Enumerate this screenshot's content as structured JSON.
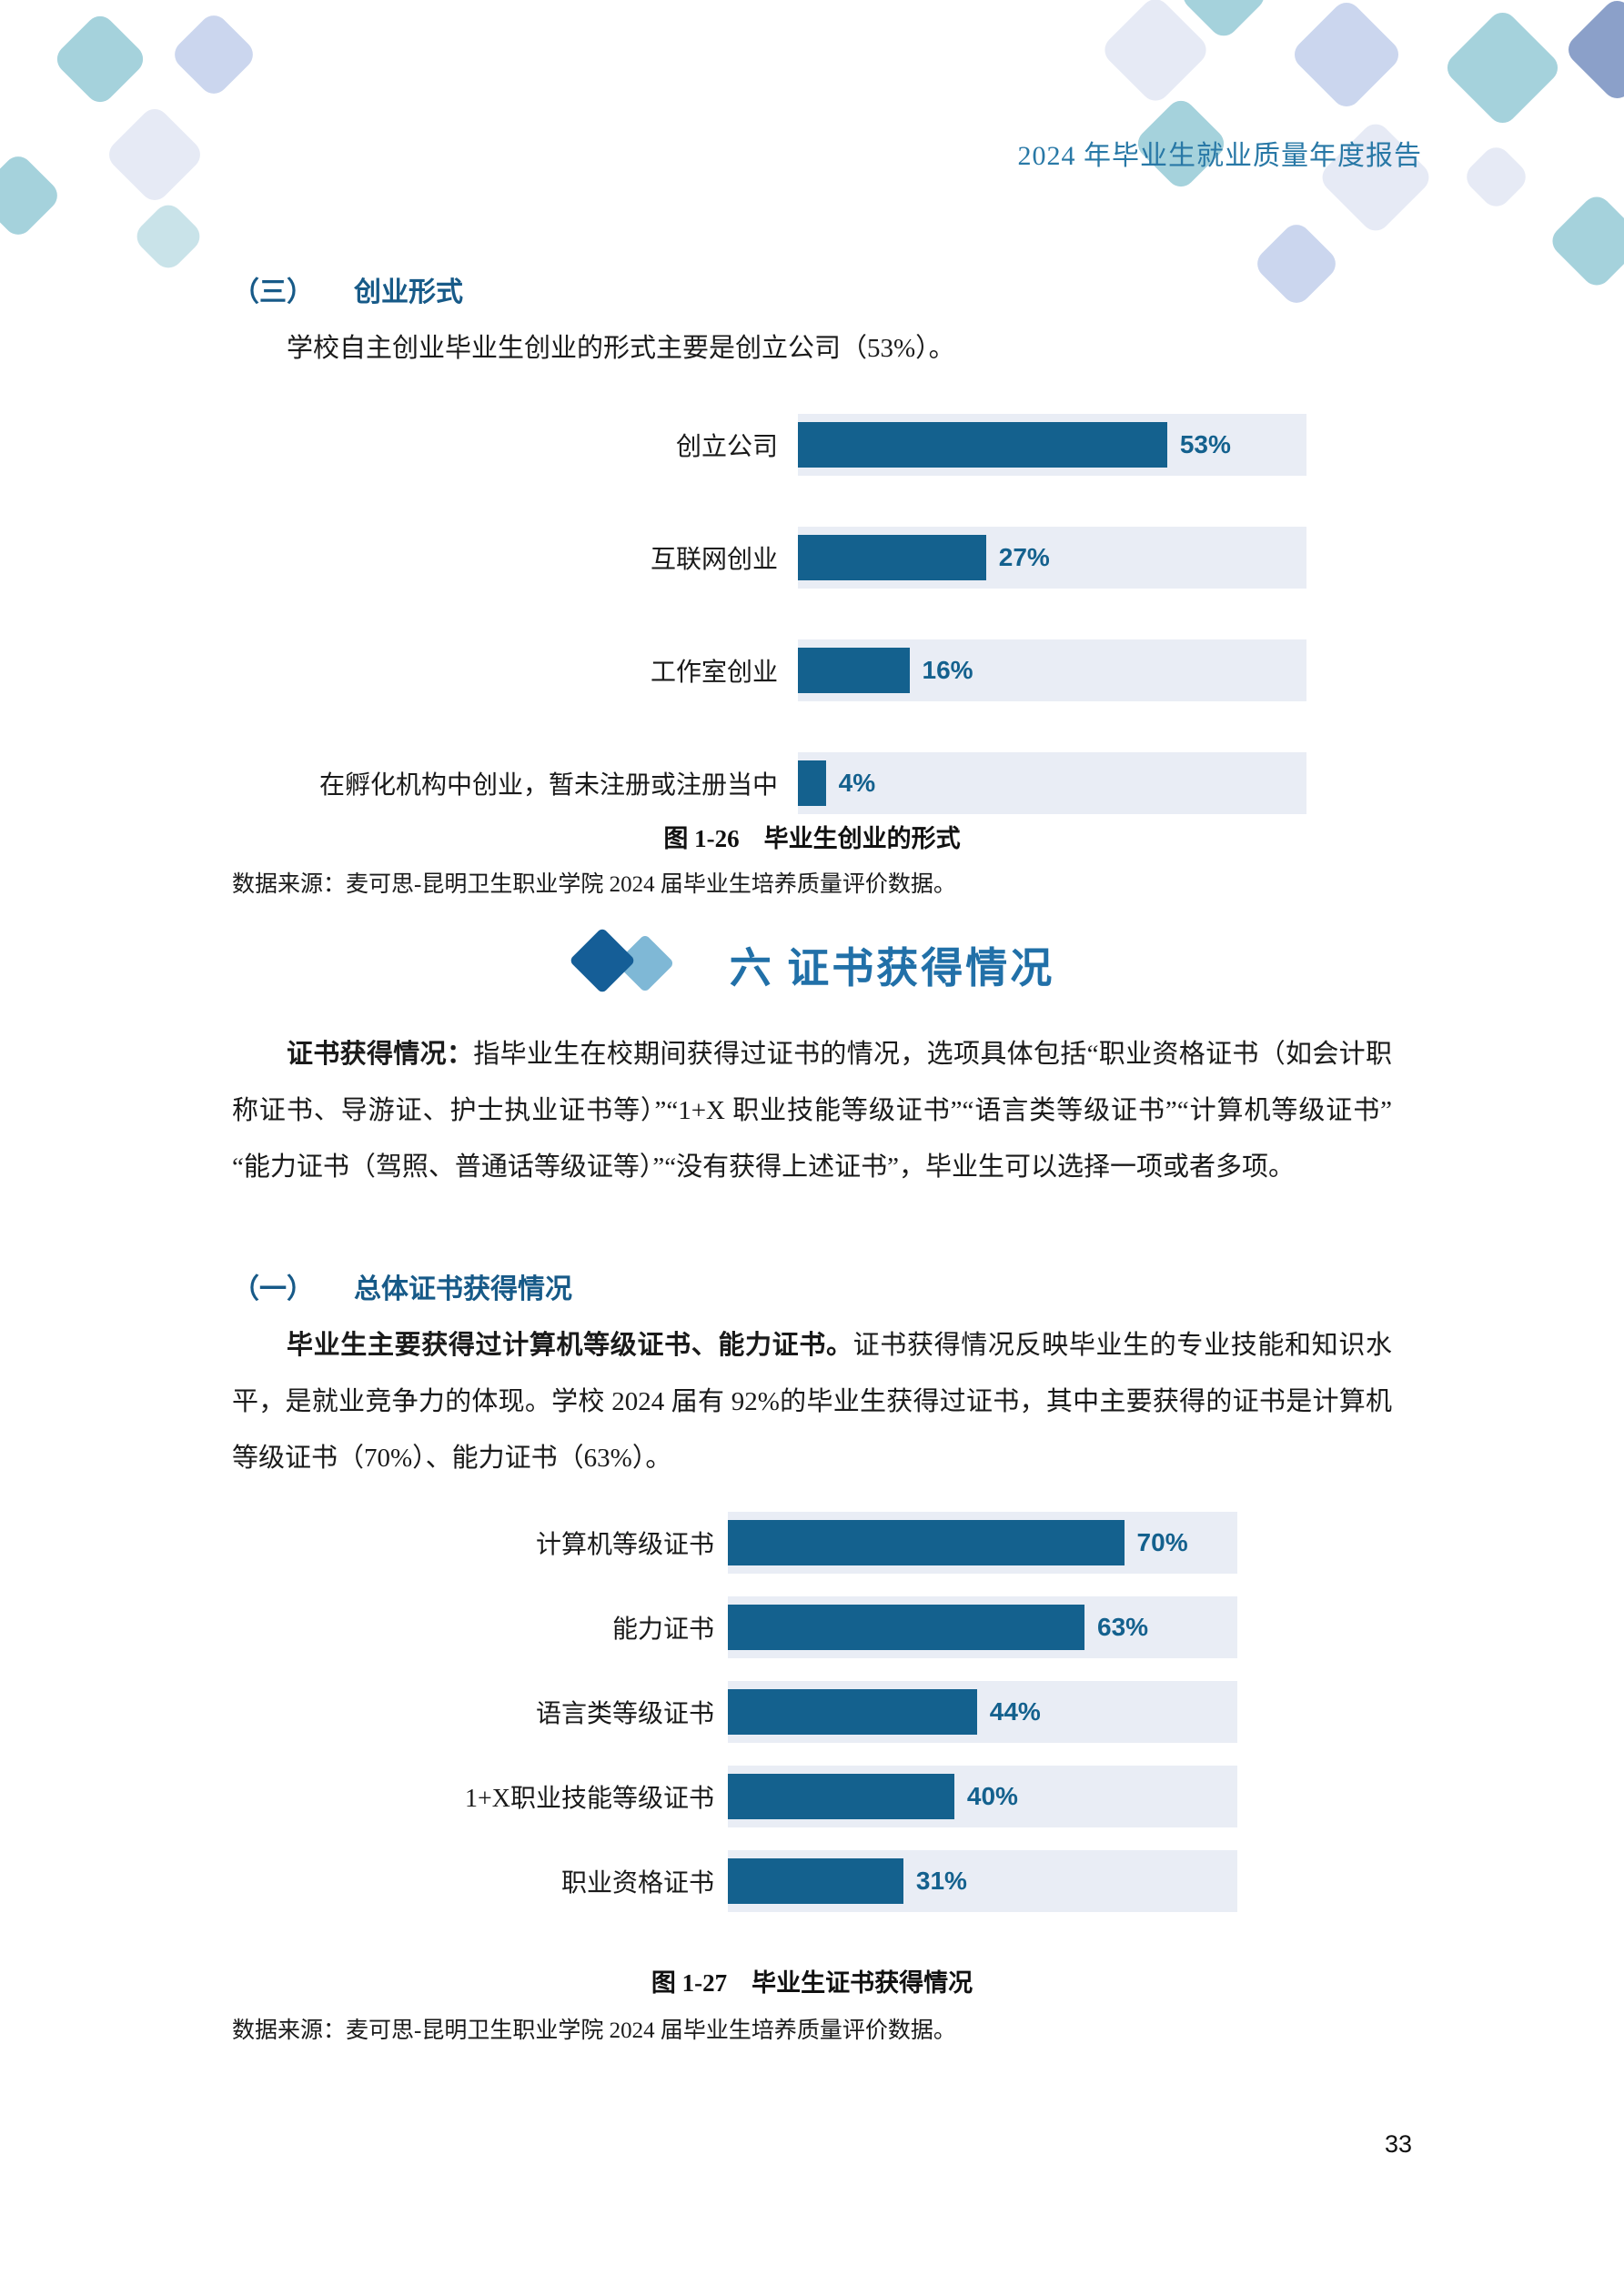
{
  "header": {
    "title": "2024 年毕业生就业质量年度报告"
  },
  "sections": {
    "s3": {
      "number": "（三）",
      "title": "创业形式",
      "paragraph": "学校自主创业毕业生创业的形式主要是创立公司（53%）。"
    },
    "s6": {
      "heading": "六 证书获得情况",
      "para_bold": "证书获得情况：",
      "para_rest": "指毕业生在校期间获得过证书的情况，选项具体包括“职业资格证书（如会计职称证书、导游证、护士执业证书等）”“1+X 职业技能等级证书”“语言类等级证书”“计算机等级证书”“能力证书（驾照、普通话等级证等）”“没有获得上述证书”，毕业生可以选择一项或者多项。"
    },
    "s1": {
      "number": "（一）",
      "title": "总体证书获得情况",
      "para_bold": "毕业生主要获得过计算机等级证书、能力证书。",
      "para_rest": "证书获得情况反映毕业生的专业技能和知识水平，是就业竞争力的体现。学校 2024 届有 92%的毕业生获得过证书，其中主要获得的证书是计算机等级证书（70%）、能力证书（63%）。"
    }
  },
  "figures": [
    {
      "caption": "图 1-26　毕业生创业的形式",
      "source": "数据来源：麦可思-昆明卫生职业学院 2024 届毕业生培养质量评价数据。"
    },
    {
      "caption": "图 1-27　毕业生证书获得情况",
      "source": "数据来源：麦可思-昆明卫生职业学院 2024 届毕业生培养质量评价数据。"
    }
  ],
  "chart_data": [
    {
      "type": "bar",
      "orientation": "horizontal",
      "title": "毕业生创业的形式",
      "categories": [
        "创立公司",
        "互联网创业",
        "工作室创业",
        "在孵化机构中创业，暂未注册或注册当中"
      ],
      "values": [
        53,
        27,
        16,
        4
      ],
      "value_labels": [
        "53%",
        "27%",
        "16%",
        "4%"
      ],
      "unit": "%",
      "axis_max": 73,
      "grid": false,
      "legend": false,
      "bar_color": "#14618e",
      "track_color": "#e9edf5"
    },
    {
      "type": "bar",
      "orientation": "horizontal",
      "title": "毕业生证书获得情况",
      "categories": [
        "计算机等级证书",
        "能力证书",
        "语言类等级证书",
        "1+X职业技能等级证书",
        "职业资格证书"
      ],
      "values": [
        70,
        63,
        44,
        40,
        31
      ],
      "value_labels": [
        "70%",
        "63%",
        "44%",
        "40%",
        "31%"
      ],
      "unit": "%",
      "axis_max": 90,
      "grid": false,
      "legend": false,
      "bar_color": "#14618e",
      "track_color": "#e9edf5"
    }
  ],
  "page_number": "33",
  "colors": {
    "header_title": "#2878a6",
    "sub_heading": "#175a88",
    "section_header": "#2170a8",
    "bar": "#14618e",
    "bar_track": "#e9edf5",
    "deco_teal": "#a5d2dc",
    "deco_pale": "#e6eaf5",
    "deco_periwinkle": "#cbd6ee",
    "deco_slate": "#8ba0c9"
  }
}
